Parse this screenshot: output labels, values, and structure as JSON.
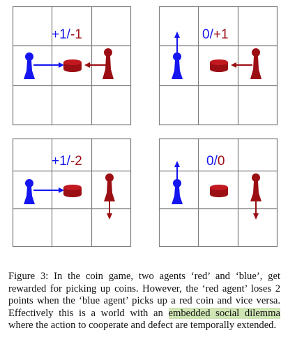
{
  "colors": {
    "blue": "#1515f0",
    "red": "#9b0f14",
    "grid": "#7f7f7f",
    "highlight": "#cfe5b4"
  },
  "panels": [
    {
      "score_left": "+1",
      "score_sep": "/",
      "score_right": "-1"
    },
    {
      "score_left": "0",
      "score_sep": "/",
      "score_right": "+1"
    },
    {
      "score_left": "+1",
      "score_sep": "/",
      "score_right": "-2"
    },
    {
      "score_left": "0",
      "score_sep": "/",
      "score_right": "0"
    }
  ],
  "caption": {
    "label": "Figure 3:",
    "text_a": " In the coin game, two agents ‘red’ and ‘blue’, get rewarded for picking up coins. However, the ‘red agent’ loses 2 points when the ‘blue agent’ picks up a red coin and vice versa. Effectively this is a world with an ",
    "highlight": "embedded social dilemma",
    "text_b": " where the action to cooperate and defect are temporally extended."
  }
}
